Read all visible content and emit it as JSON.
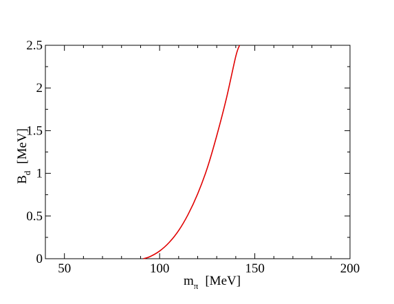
{
  "chart_data": {
    "type": "line",
    "title": "",
    "xlabel": {
      "main": "m",
      "sub": "π",
      "unit": "[MeV]"
    },
    "ylabel": {
      "main": "B",
      "sub": "d",
      "unit": "[MeV]"
    },
    "xlim": [
      40,
      200
    ],
    "ylim": [
      0,
      2.5
    ],
    "x_ticks": [
      50,
      100,
      150,
      200
    ],
    "x_tick_labels": [
      "50",
      "100",
      "150",
      "200"
    ],
    "y_ticks": [
      0,
      0.5,
      1,
      1.5,
      2,
      2.5
    ],
    "y_tick_labels": [
      "0",
      "0.5",
      "1",
      "1.5",
      "2",
      "2.5"
    ],
    "x_minor_step": 10,
    "y_minor_step": 0.25,
    "grid": false,
    "series": [
      {
        "color": "#e00000",
        "x": [
          91.5,
          95,
          100,
          105,
          110,
          115,
          120,
          125,
          130,
          135,
          140,
          142
        ],
        "y": [
          0.0,
          0.025,
          0.09,
          0.19,
          0.33,
          0.52,
          0.76,
          1.06,
          1.44,
          1.87,
          2.37,
          2.5
        ]
      }
    ]
  }
}
